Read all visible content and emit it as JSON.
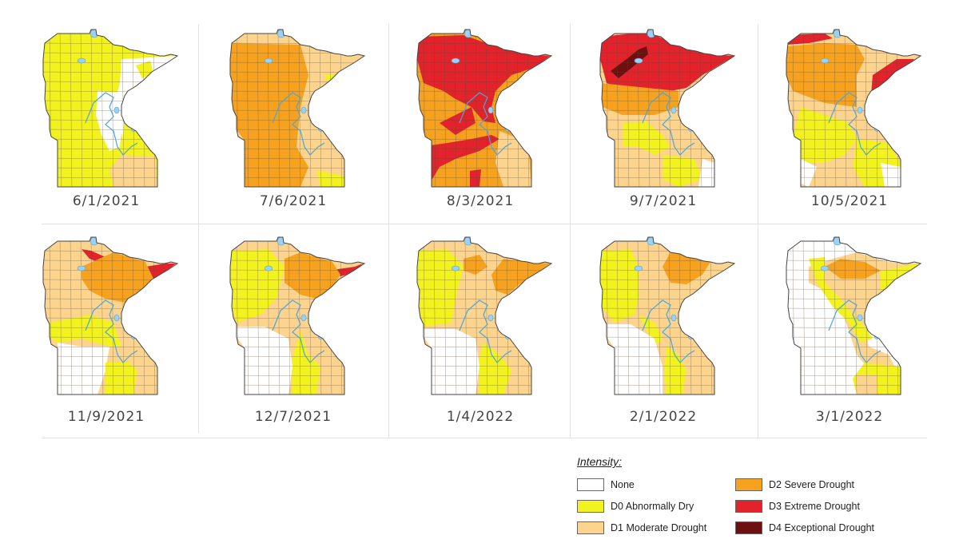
{
  "colors": {
    "none": "#ffffff",
    "d0": "#f2f21e",
    "d1": "#fcd48e",
    "d2": "#f6a21f",
    "d3": "#e4222b",
    "d4": "#6f1010",
    "water": "#9fd0ef",
    "border": "#444444"
  },
  "panels": [
    {
      "date": "6/1/2021",
      "base": "d0",
      "levels": [
        "none",
        "d0",
        "d1"
      ]
    },
    {
      "date": "7/6/2021",
      "base": "d1",
      "levels": [
        "d0",
        "d1",
        "d2"
      ]
    },
    {
      "date": "8/3/2021",
      "base": "d2",
      "levels": [
        "d1",
        "d2",
        "d3"
      ]
    },
    {
      "date": "9/7/2021",
      "base": "d1",
      "levels": [
        "none",
        "d0",
        "d1",
        "d2",
        "d3",
        "d4"
      ]
    },
    {
      "date": "10/5/2021",
      "base": "d1",
      "levels": [
        "none",
        "d0",
        "d1",
        "d2",
        "d3"
      ]
    },
    {
      "date": "11/9/2021",
      "base": "d1",
      "levels": [
        "none",
        "d0",
        "d1",
        "d2",
        "d3"
      ]
    },
    {
      "date": "12/7/2021",
      "base": "d1",
      "levels": [
        "none",
        "d0",
        "d1",
        "d2",
        "d3"
      ]
    },
    {
      "date": "1/4/2022",
      "base": "d1",
      "levels": [
        "none",
        "d0",
        "d1",
        "d2"
      ]
    },
    {
      "date": "2/1/2022",
      "base": "d1",
      "levels": [
        "none",
        "d0",
        "d1",
        "d2"
      ]
    },
    {
      "date": "3/1/2022",
      "base": "none",
      "levels": [
        "none",
        "d0",
        "d1",
        "d2"
      ]
    }
  ],
  "legend": {
    "title": "Intensity:",
    "items": [
      {
        "key": "none",
        "label": "None"
      },
      {
        "key": "d0",
        "label": "D0 Abnormally Dry"
      },
      {
        "key": "d1",
        "label": "D1 Moderate Drought"
      },
      {
        "key": "d2",
        "label": "D2 Severe Drought"
      },
      {
        "key": "d3",
        "label": "D3 Extreme Drought"
      },
      {
        "key": "d4",
        "label": "D4 Exceptional Drought"
      }
    ]
  }
}
